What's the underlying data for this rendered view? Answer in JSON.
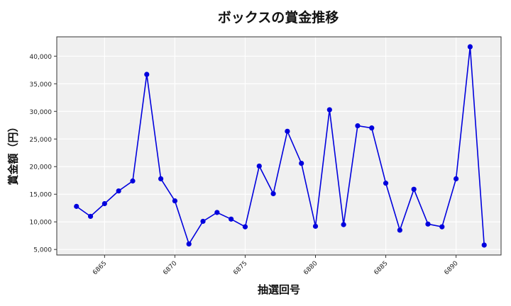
{
  "chart_data": {
    "type": "line",
    "title": "ボックスの賞金推移",
    "xlabel": "抽選回号",
    "ylabel": "賞金額（円）",
    "x": [
      6863,
      6864,
      6865,
      6866,
      6867,
      6868,
      6869,
      6870,
      6871,
      6872,
      6873,
      6874,
      6875,
      6876,
      6877,
      6878,
      6879,
      6880,
      6881,
      6882,
      6883,
      6884,
      6885,
      6886,
      6887,
      6888,
      6889,
      6890,
      6891,
      6892
    ],
    "series": [
      {
        "name": "ボックス",
        "color": "#0000dd",
        "marker": "circle",
        "values": [
          12800,
          11000,
          13300,
          15600,
          17400,
          36700,
          17800,
          13800,
          6000,
          10100,
          11700,
          10500,
          9100,
          20100,
          15100,
          26400,
          20600,
          9200,
          30300,
          9500,
          27400,
          27000,
          17000,
          8500,
          15900,
          9600,
          9100,
          17800,
          41700,
          5800
        ]
      }
    ],
    "xticks": [
      6865,
      6870,
      6875,
      6880,
      6885,
      6890
    ],
    "yticks": [
      5000,
      10000,
      15000,
      20000,
      25000,
      30000,
      35000,
      40000
    ],
    "ytick_labels": [
      "5,000",
      "10,000",
      "15,000",
      "20,000",
      "25,000",
      "30,000",
      "35,000",
      "40,000"
    ],
    "xlim": [
      6861.6,
      6893.2
    ],
    "ylim": [
      4000,
      43500
    ],
    "grid": true,
    "background": "#f0f0f0",
    "legend": null
  }
}
